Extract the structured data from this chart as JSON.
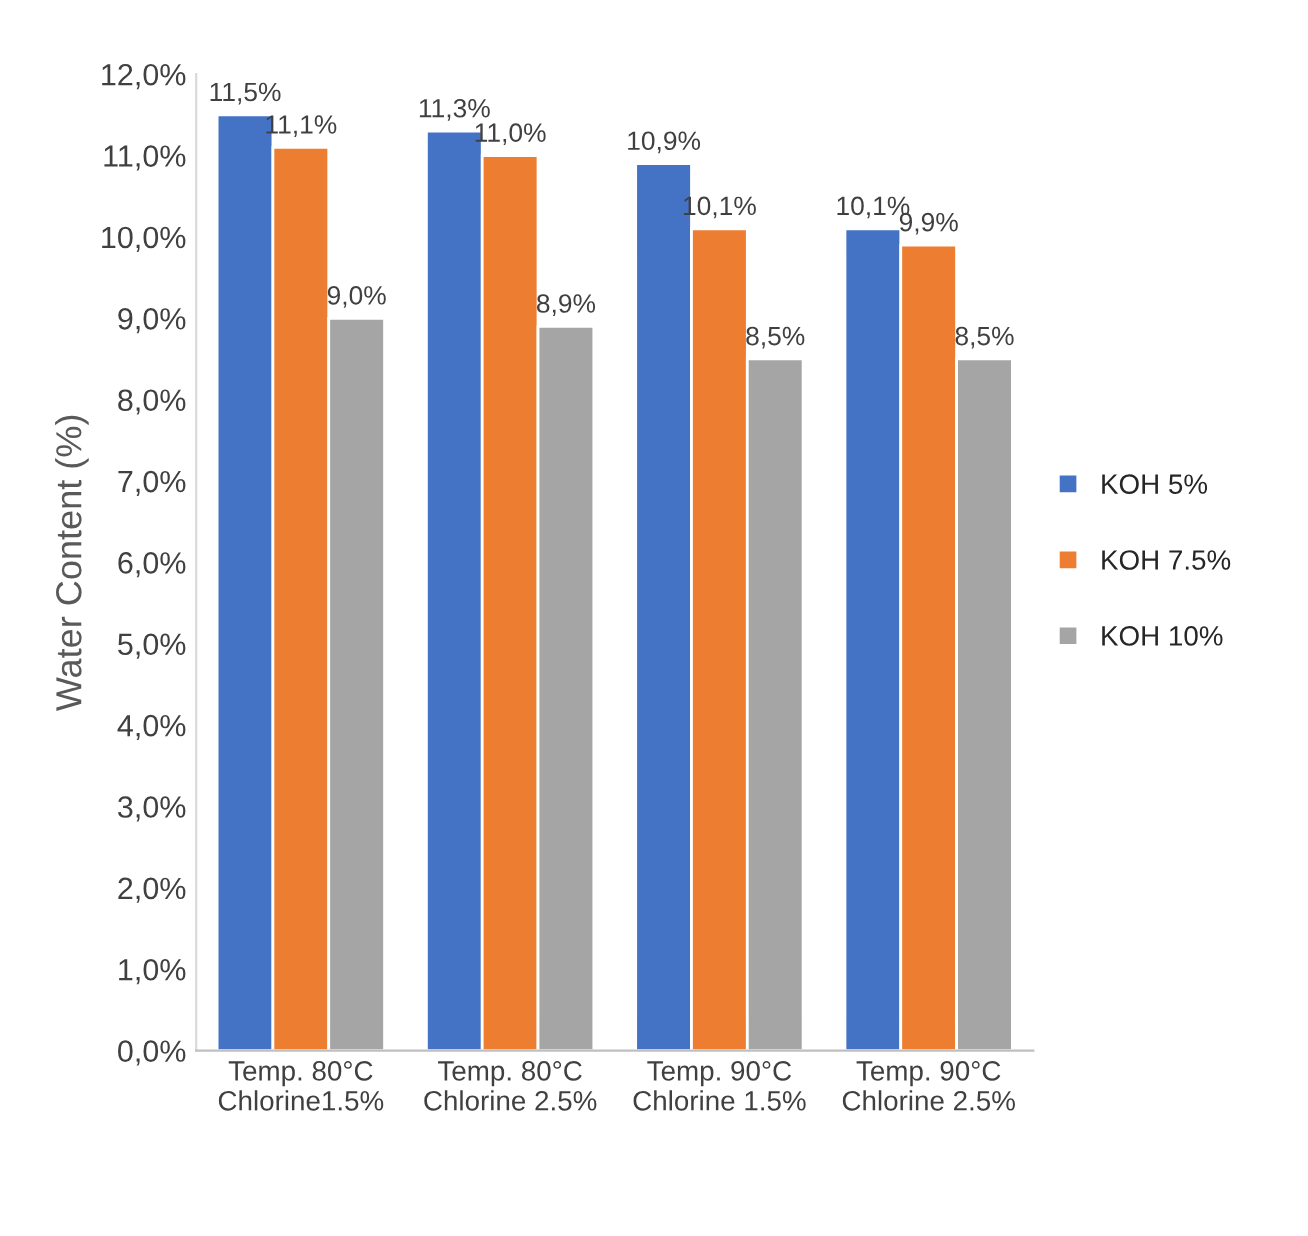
{
  "chart_data": {
    "type": "bar",
    "ylabel": "Water Content (%)",
    "categories": [
      "Temp. 80°C\nChlorine1.5%",
      "Temp. 80°C\nChlorine 2.5%",
      "Temp. 90°C\nChlorine 1.5%",
      "Temp. 90°C\nChlorine 2.5%"
    ],
    "series": [
      {
        "name": "KOH 5%",
        "color": "#4472c4",
        "values": [
          11.5,
          11.3,
          10.9,
          10.1
        ],
        "value_labels": [
          "11,5%",
          "11,3%",
          "10,9%",
          "10,1%"
        ]
      },
      {
        "name": "KOH 7.5%",
        "color": "#ed7d31",
        "values": [
          11.1,
          11.0,
          10.1,
          9.9
        ],
        "value_labels": [
          "11,1%",
          "11,0%",
          "10,1%",
          "9,9%"
        ]
      },
      {
        "name": "KOH 10%",
        "color": "#a5a5a5",
        "values": [
          9.0,
          8.9,
          8.5,
          8.5
        ],
        "value_labels": [
          "9,0%",
          "8,9%",
          "8,5%",
          "8,5%"
        ]
      }
    ],
    "ylim": [
      0,
      12
    ],
    "yticks": [
      {
        "value": 0,
        "label": "0,0%"
      },
      {
        "value": 1,
        "label": "1,0%"
      },
      {
        "value": 2,
        "label": "2,0%"
      },
      {
        "value": 3,
        "label": "3,0%"
      },
      {
        "value": 4,
        "label": "4,0%"
      },
      {
        "value": 5,
        "label": "5,0%"
      },
      {
        "value": 6,
        "label": "6,0%"
      },
      {
        "value": 7,
        "label": "7,0%"
      },
      {
        "value": 8,
        "label": "8,0%"
      },
      {
        "value": 9,
        "label": "9,0%"
      },
      {
        "value": 10,
        "label": "10,0%"
      },
      {
        "value": 11,
        "label": "11,0%"
      },
      {
        "value": 12,
        "label": "12,0%"
      }
    ],
    "grid": false,
    "legend": "right"
  }
}
